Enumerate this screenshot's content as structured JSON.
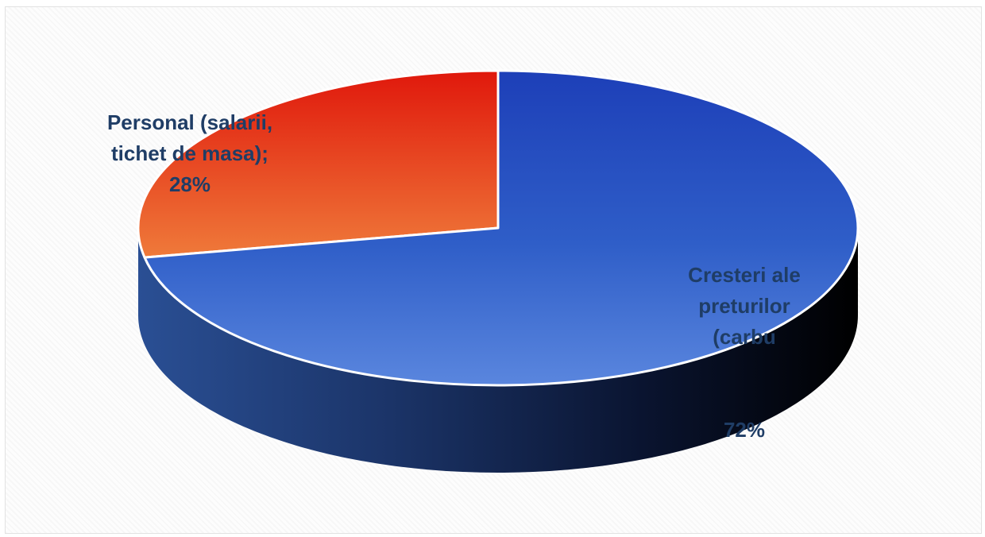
{
  "chart_data": {
    "type": "pie",
    "style": "3d",
    "slices": [
      {
        "label_lines": [
          "Personal (salarii,",
          "tichet de masa);",
          "28%"
        ],
        "value": 28,
        "color": "#e8502a"
      },
      {
        "label_lines": [
          "Cresteri ale",
          "preturilor",
          "(carbu",
          "",
          "",
          "72%"
        ],
        "value": 72,
        "color": "#2f5fc4"
      }
    ]
  }
}
